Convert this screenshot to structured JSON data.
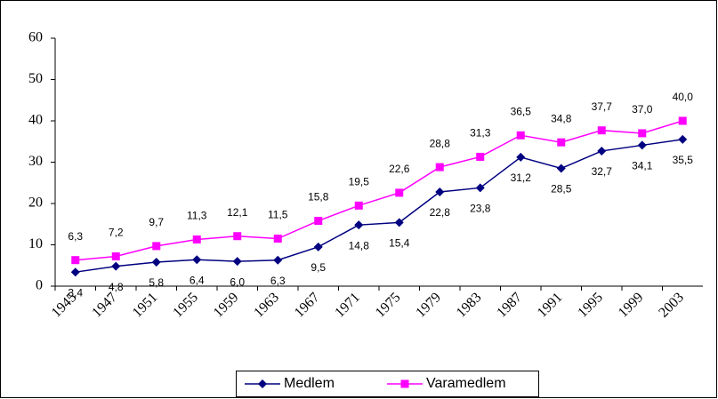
{
  "chart_data": {
    "type": "line",
    "categories": [
      "1945",
      "1947",
      "1951",
      "1955",
      "1959",
      "1963",
      "1967",
      "1971",
      "1975",
      "1979",
      "1983",
      "1987",
      "1991",
      "1995",
      "1999",
      "2003"
    ],
    "series": [
      {
        "name": "Medlem",
        "color": "#000080",
        "marker": "diamond",
        "values": [
          3.4,
          4.8,
          5.8,
          6.4,
          6.0,
          6.3,
          9.5,
          14.8,
          15.4,
          22.8,
          23.8,
          31.2,
          28.5,
          32.7,
          34.1,
          35.5
        ],
        "value_labels": [
          "3,4",
          "4,8",
          "5,8",
          "6,4",
          "6,0",
          "6,3",
          "9,5",
          "14,8",
          "15,4",
          "22,8",
          "23,8",
          "31,2",
          "28,5",
          "32,7",
          "34,1",
          "35,5"
        ]
      },
      {
        "name": "Varamedlem",
        "color": "#ff00ff",
        "marker": "square",
        "values": [
          6.3,
          7.2,
          9.7,
          11.3,
          12.1,
          11.5,
          15.8,
          19.5,
          22.6,
          28.8,
          31.3,
          36.5,
          34.8,
          37.7,
          37.0,
          40.0
        ],
        "value_labels": [
          "6,3",
          "7,2",
          "9,7",
          "11,3",
          "12,1",
          "11,5",
          "15,8",
          "19,5",
          "22,6",
          "28,8",
          "31,3",
          "36,5",
          "34,8",
          "37,7",
          "37,0",
          "40,0"
        ]
      }
    ],
    "ylim": [
      0,
      60
    ],
    "yticks": [
      0,
      10,
      20,
      30,
      40,
      50,
      60
    ],
    "grid": false,
    "legend": "bottom"
  }
}
